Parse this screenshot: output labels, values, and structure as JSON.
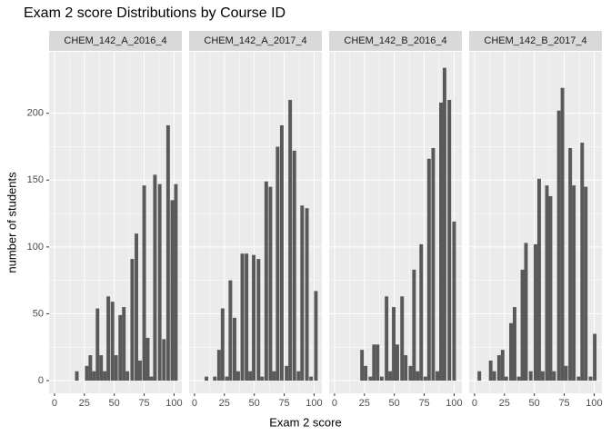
{
  "title": "Exam 2 score Distributions by Course ID",
  "x_label": "Exam 2 score",
  "y_label": "number of students",
  "chart_data": [
    {
      "type": "bar",
      "title": "CHEM_142_A_2016_4",
      "color": "#595959",
      "grid": true,
      "x": [
        18.7,
        27,
        30,
        33,
        36,
        39,
        42,
        45,
        48.5,
        51.5,
        55,
        58,
        61,
        65,
        68.5,
        71.5,
        75,
        78,
        81,
        84,
        88,
        91.5,
        95,
        98.5,
        101.5
      ],
      "values": [
        7,
        11,
        19,
        7,
        54,
        19,
        7,
        63,
        59,
        19,
        49,
        55,
        7,
        91,
        110,
        15,
        146,
        32,
        3,
        154,
        147,
        31,
        191,
        135,
        147
      ],
      "xlim": [
        -4.5,
        106.5
      ],
      "xticks": [
        0,
        25,
        50,
        75,
        100
      ],
      "ylim": [
        -9.5,
        246
      ],
      "yticks": [
        0,
        50,
        100,
        150,
        200
      ]
    },
    {
      "type": "bar",
      "title": "CHEM_142_A_2017_4",
      "color": "#595959",
      "grid": true,
      "x": [
        10,
        17,
        20.5,
        23.5,
        27,
        30,
        33.5,
        36.5,
        40,
        43.5,
        46.5,
        49.5,
        53.5,
        56.5,
        60,
        63.5,
        66.5,
        69.5,
        73,
        77,
        80,
        83.5,
        87,
        90,
        94,
        97.5,
        101.5
      ],
      "values": [
        3,
        3,
        23,
        54,
        3,
        75,
        47,
        7,
        95,
        95,
        7,
        94,
        91,
        3,
        149,
        145,
        7,
        175,
        191,
        11,
        210,
        172,
        7,
        131,
        129,
        3,
        67
      ],
      "xlim": [
        -4.5,
        106.5
      ],
      "xticks": [
        0,
        25,
        50,
        75,
        100
      ],
      "ylim": [
        -9.5,
        246
      ],
      "yticks": [
        0,
        50,
        100,
        150,
        200
      ]
    },
    {
      "type": "bar",
      "title": "CHEM_142_B_2016_4",
      "color": "#595959",
      "grid": true,
      "x": [
        23,
        26,
        30,
        33,
        36,
        39.5,
        43.5,
        46.5,
        49.5,
        52.5,
        56.5,
        59.5,
        63.5,
        66.5,
        69.5,
        72.5,
        76,
        79,
        82.5,
        86,
        89,
        92,
        96,
        100
      ],
      "values": [
        23,
        11,
        3,
        27,
        27,
        3,
        63,
        7,
        55,
        27,
        63,
        19,
        11,
        83,
        7,
        102,
        3,
        166,
        174,
        7,
        208,
        234,
        210,
        119
      ],
      "xlim": [
        -4.5,
        106.5
      ],
      "xticks": [
        0,
        25,
        50,
        75,
        100
      ],
      "ylim": [
        -9.5,
        246
      ],
      "yticks": [
        0,
        50,
        100,
        150,
        200
      ]
    },
    {
      "type": "bar",
      "title": "CHEM_142_B_2017_4",
      "color": "#595959",
      "grid": true,
      "x": [
        4,
        13.5,
        16.5,
        20.5,
        23.5,
        26.5,
        30.5,
        33.5,
        37,
        40,
        43,
        47,
        51,
        54,
        57,
        60.5,
        63.5,
        66.5,
        70.5,
        73.5,
        76.5,
        80,
        83,
        87,
        90,
        93,
        97,
        100.5
      ],
      "values": [
        7,
        15,
        7,
        19,
        23,
        3,
        43,
        55,
        3,
        83,
        103,
        7,
        102,
        151,
        7,
        146,
        138,
        7,
        202,
        219,
        11,
        174,
        146,
        3,
        178,
        145,
        3,
        35
      ],
      "xlim": [
        -4.5,
        106.5
      ],
      "xticks": [
        0,
        25,
        50,
        75,
        100
      ],
      "ylim": [
        -9.5,
        246
      ],
      "yticks": [
        0,
        50,
        100,
        150,
        200
      ]
    }
  ]
}
